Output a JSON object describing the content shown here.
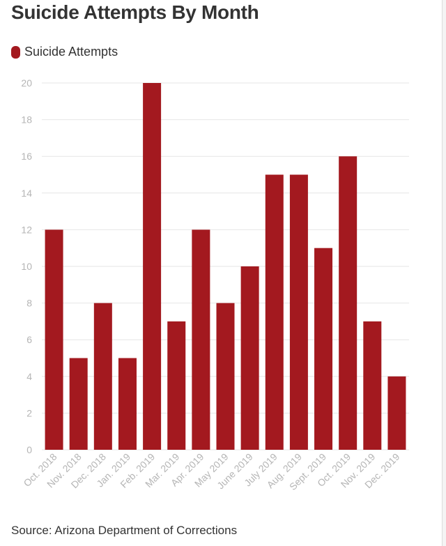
{
  "colors": {
    "bar": "#a3191f",
    "grid": "#e6e6e6",
    "tick_text": "#b5b5b5",
    "text": "#333333"
  },
  "chart_data": {
    "type": "bar",
    "title": "Suicide Attempts By Month",
    "legend": [
      "Suicide Attempts"
    ],
    "legend_position": "top-left",
    "grid": true,
    "categories": [
      "Oct. 2018",
      "Nov. 2018",
      "Dec. 2018",
      "Jan. 2019",
      "Feb. 2019",
      "Mar. 2019",
      "Apr. 2019",
      "May 2019",
      "June 2019",
      "July 2019",
      "Aug. 2019",
      "Sept. 2019",
      "Oct. 2019",
      "Nov. 2019",
      "Dec. 2019"
    ],
    "series": [
      {
        "name": "Suicide Attempts",
        "values": [
          12,
          5,
          8,
          5,
          20,
          7,
          12,
          8,
          10,
          15,
          15,
          11,
          16,
          7,
          4
        ]
      }
    ],
    "ylim": [
      0,
      20
    ],
    "yticks": [
      0,
      2,
      4,
      6,
      8,
      10,
      12,
      14,
      16,
      18,
      20
    ]
  },
  "source": "Source: Arizona Department of Corrections"
}
